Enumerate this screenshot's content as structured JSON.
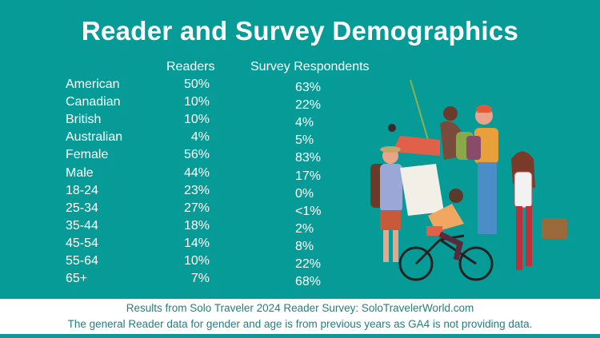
{
  "title": "Reader and Survey Demographics",
  "columns": {
    "readers": "Readers",
    "survey": "Survey Respondents"
  },
  "rows": [
    {
      "label": "American",
      "readers": "50%",
      "survey": "63%"
    },
    {
      "label": "Canadian",
      "readers": "10%",
      "survey": "22%"
    },
    {
      "label": "British",
      "readers": "10%",
      "survey": "4%"
    },
    {
      "label": "Australian",
      "readers": "4%",
      "survey": "5%"
    },
    {
      "label": "Female",
      "readers": "56%",
      "survey": "83%"
    },
    {
      "label": "Male",
      "readers": "44%",
      "survey": "17%"
    },
    {
      "label": "18-24",
      "readers": "23%",
      "survey": "0%"
    },
    {
      "label": "25-34",
      "readers": "27%",
      "survey": "<1%"
    },
    {
      "label": "35-44",
      "readers": "18%",
      "survey": "2%"
    },
    {
      "label": "45-54",
      "readers": "14%",
      "survey": "8%"
    },
    {
      "label": "55-64",
      "readers": "10%",
      "survey": "22%"
    },
    {
      "label": "65+",
      "readers": "7%",
      "survey": "68%"
    }
  ],
  "footer": {
    "line1": "Results from Solo Traveler 2024 Reader Survey: SoloTravelerWorld.com",
    "line2": "The general Reader data for gender and age is from previous years as GA4 is not providing data."
  },
  "colors": {
    "background": "#079b98",
    "footer_text": "#237f80"
  },
  "illustration": "travelers-group-illustration"
}
